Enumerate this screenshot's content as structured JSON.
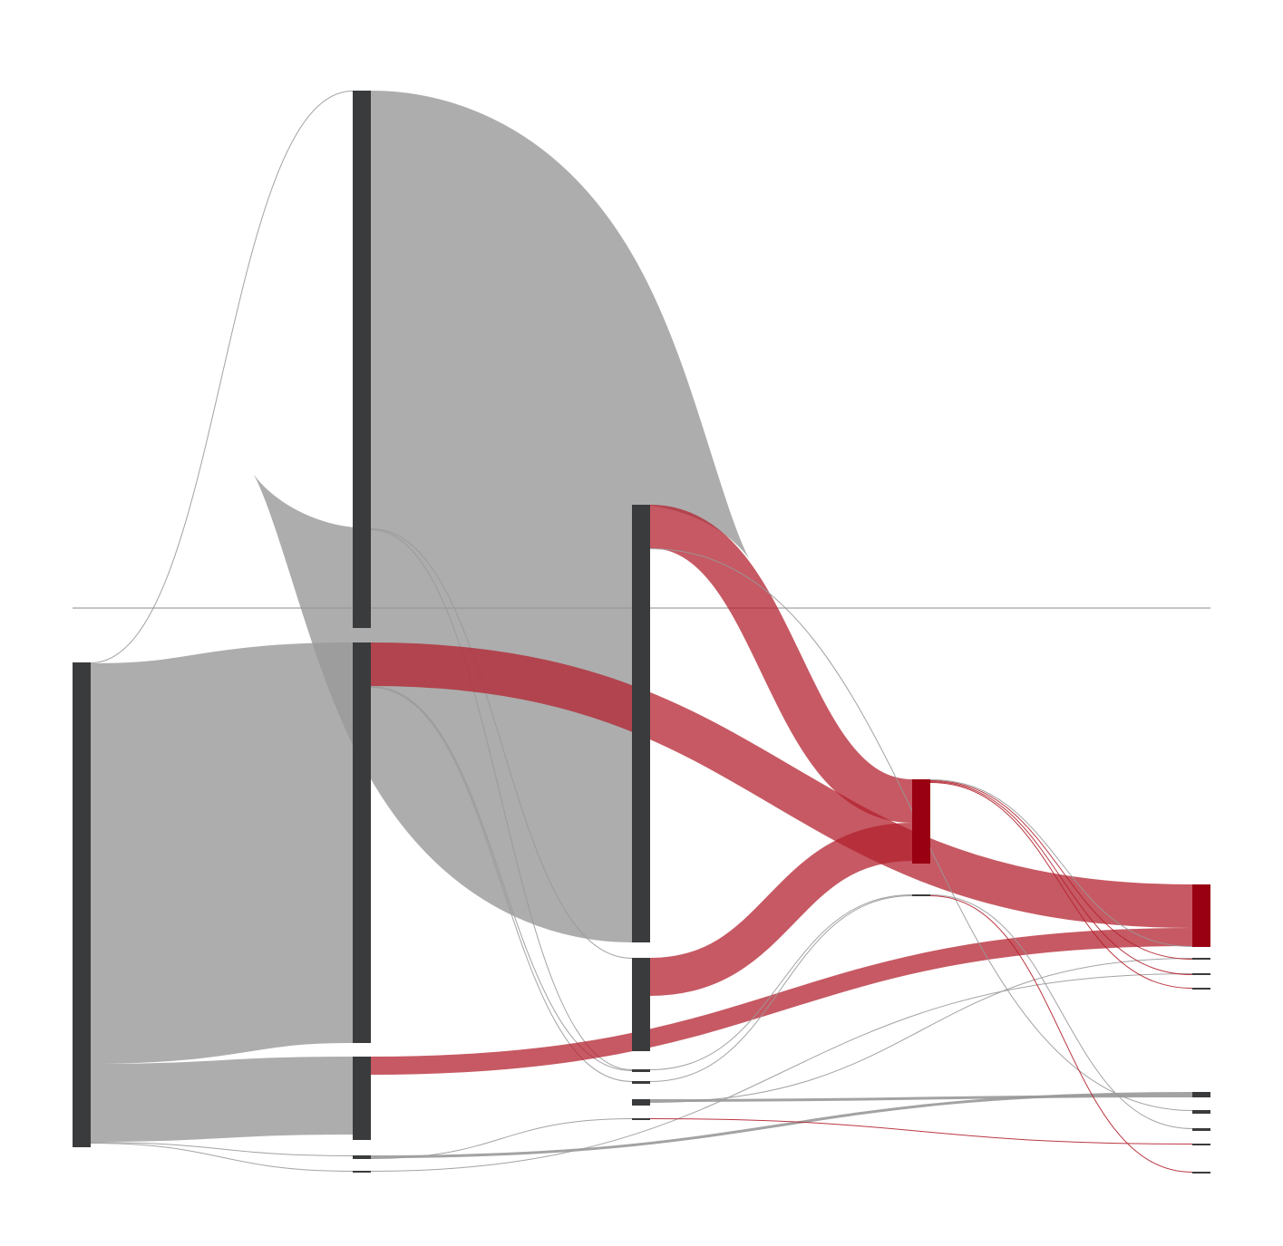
{
  "chart_data": {
    "type": "sankey",
    "title": "",
    "colors": {
      "node_default": "#3a3b3c",
      "node_highlight": "#990011",
      "link_default": "#999999",
      "link_highlight": "#b3222f",
      "baseline": "#888888"
    },
    "nodes": [
      {
        "id": "a0",
        "stage": 0,
        "value": 535,
        "highlight": false
      },
      {
        "id": "b0",
        "stage": 1,
        "value": 593,
        "highlight": false
      },
      {
        "id": "b1",
        "stage": 1,
        "value": 442,
        "highlight": false
      },
      {
        "id": "b2",
        "stage": 1,
        "value": 92,
        "highlight": false
      },
      {
        "id": "b3",
        "stage": 1,
        "value": 4,
        "highlight": false
      },
      {
        "id": "b4",
        "stage": 1,
        "value": 2,
        "highlight": false
      },
      {
        "id": "c0",
        "stage": 2,
        "value": 483,
        "highlight": false
      },
      {
        "id": "c1",
        "stage": 2,
        "value": 103,
        "highlight": false
      },
      {
        "id": "c2",
        "stage": 2,
        "value": 3,
        "highlight": false
      },
      {
        "id": "c3",
        "stage": 2,
        "value": 3,
        "highlight": false
      },
      {
        "id": "c4",
        "stage": 2,
        "value": 7,
        "highlight": false
      },
      {
        "id": "c5",
        "stage": 2,
        "value": 2,
        "highlight": false
      },
      {
        "id": "d0",
        "stage": 3,
        "value": 93,
        "highlight": true
      },
      {
        "id": "d1",
        "stage": 3,
        "value": 2,
        "highlight": false
      },
      {
        "id": "e0",
        "stage": 4,
        "value": 69,
        "highlight": true
      },
      {
        "id": "e1",
        "stage": 4,
        "value": 1,
        "highlight": false
      },
      {
        "id": "e2",
        "stage": 4,
        "value": 1,
        "highlight": false
      },
      {
        "id": "e3",
        "stage": 4,
        "value": 1,
        "highlight": false
      },
      {
        "id": "e4",
        "stage": 4,
        "value": 1,
        "highlight": false
      },
      {
        "id": "e5",
        "stage": 4,
        "value": 6,
        "highlight": false
      },
      {
        "id": "e6",
        "stage": 4,
        "value": 4,
        "highlight": false
      },
      {
        "id": "e7",
        "stage": 4,
        "value": 3,
        "highlight": false
      },
      {
        "id": "e8",
        "stage": 4,
        "value": 1,
        "highlight": false
      }
    ],
    "links": [
      {
        "source": "a0",
        "target": "b0",
        "value": 1,
        "highlight": false
      },
      {
        "source": "a0",
        "target": "b1",
        "value": 442,
        "highlight": false
      },
      {
        "source": "a0",
        "target": "b2",
        "value": 86,
        "highlight": false
      },
      {
        "source": "a0",
        "target": "b3",
        "value": 1,
        "highlight": false
      },
      {
        "source": "a0",
        "target": "b4",
        "value": 1,
        "highlight": false
      },
      {
        "source": "b0",
        "target": "c0",
        "value": 483,
        "highlight": false
      },
      {
        "source": "b0",
        "target": "c1",
        "value": 1,
        "highlight": false
      },
      {
        "source": "b0",
        "target": "c2",
        "value": 1,
        "highlight": false
      },
      {
        "source": "b1",
        "target": "e0",
        "value": 48,
        "highlight": true
      },
      {
        "source": "b1",
        "target": "c2",
        "value": 1,
        "highlight": false
      },
      {
        "source": "b1",
        "target": "c3",
        "value": 1,
        "highlight": false
      },
      {
        "source": "b2",
        "target": "e0",
        "value": 20,
        "highlight": true
      },
      {
        "source": "b3",
        "target": "e5",
        "value": 3,
        "highlight": false
      },
      {
        "source": "b3",
        "target": "c5",
        "value": 1,
        "highlight": false
      },
      {
        "source": "b4",
        "target": "e2",
        "value": 1,
        "highlight": false
      },
      {
        "source": "c0",
        "target": "d0",
        "value": 48,
        "highlight": true
      },
      {
        "source": "c0",
        "target": "e6",
        "value": 1,
        "highlight": false
      },
      {
        "source": "c1",
        "target": "d0",
        "value": 42,
        "highlight": true
      },
      {
        "source": "c2",
        "target": "d1",
        "value": 1,
        "highlight": false
      },
      {
        "source": "c3",
        "target": "d1",
        "value": 1,
        "highlight": false
      },
      {
        "source": "c4",
        "target": "e5",
        "value": 3,
        "highlight": false
      },
      {
        "source": "c4",
        "target": "e1",
        "value": 1,
        "highlight": false
      },
      {
        "source": "c5",
        "target": "e8",
        "value": 1,
        "highlight": true
      },
      {
        "source": "d0",
        "target": "e0",
        "value": 1,
        "highlight": false
      },
      {
        "source": "d0",
        "target": "e1",
        "value": 1,
        "highlight": true
      },
      {
        "source": "d0",
        "target": "e2",
        "value": 1,
        "highlight": true
      },
      {
        "source": "d0",
        "target": "e3",
        "value": 1,
        "highlight": true
      },
      {
        "source": "d1",
        "target": "e7",
        "value": 1,
        "highlight": false
      },
      {
        "source": "d1",
        "target": "e4",
        "value": 1,
        "highlight": true
      }
    ]
  }
}
